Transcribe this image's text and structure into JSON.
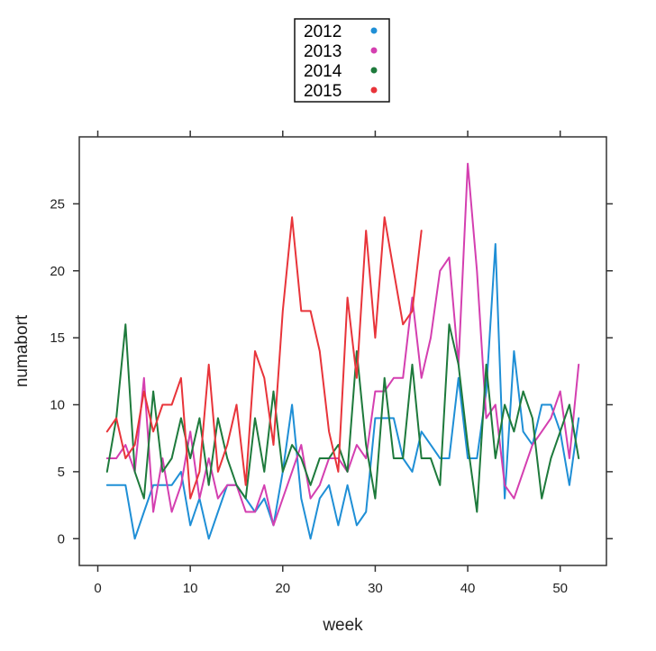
{
  "chart_data": {
    "type": "line",
    "xlabel": "week",
    "ylabel": "numabort",
    "xlim": [
      -2,
      55
    ],
    "ylim": [
      -2,
      30
    ],
    "x_ticks": [
      0,
      10,
      20,
      30,
      40,
      50
    ],
    "y_ticks": [
      0,
      5,
      10,
      15,
      20,
      25
    ],
    "grid": false,
    "legend_position": "top-center",
    "series": [
      {
        "name": "2012",
        "color": "#1f8fd6",
        "x": [
          1,
          2,
          3,
          4,
          5,
          6,
          7,
          8,
          9,
          10,
          11,
          12,
          13,
          14,
          15,
          16,
          17,
          18,
          19,
          20,
          21,
          22,
          23,
          24,
          25,
          26,
          27,
          28,
          29,
          30,
          31,
          32,
          33,
          34,
          35,
          36,
          37,
          38,
          39,
          40,
          41,
          42,
          43,
          44,
          45,
          46,
          47,
          48,
          49,
          50,
          51,
          52
        ],
        "values": [
          4,
          4,
          4,
          0,
          2,
          4,
          4,
          4,
          5,
          1,
          3,
          0,
          2,
          4,
          4,
          3,
          2,
          3,
          1,
          5,
          10,
          3,
          0,
          3,
          4,
          1,
          4,
          1,
          2,
          9,
          9,
          9,
          6,
          5,
          8,
          7,
          6,
          6,
          12,
          6,
          6,
          11,
          22,
          3,
          14,
          8,
          7,
          10,
          10,
          8,
          4,
          9
        ]
      },
      {
        "name": "2013",
        "color": "#d43fb0",
        "x": [
          1,
          2,
          3,
          4,
          5,
          6,
          7,
          8,
          9,
          10,
          11,
          12,
          13,
          14,
          15,
          16,
          17,
          18,
          19,
          20,
          21,
          22,
          23,
          24,
          25,
          26,
          27,
          28,
          29,
          30,
          31,
          32,
          33,
          34,
          35,
          36,
          37,
          38,
          39,
          40,
          41,
          42,
          43,
          44,
          45,
          46,
          47,
          48,
          49,
          50,
          51,
          52
        ],
        "values": [
          6,
          6,
          7,
          5,
          12,
          2,
          6,
          2,
          4,
          8,
          3,
          6,
          3,
          4,
          4,
          2,
          2,
          4,
          1,
          3,
          5,
          7,
          3,
          4,
          6,
          6,
          5,
          7,
          6,
          11,
          11,
          12,
          12,
          18,
          12,
          15,
          20,
          21,
          13,
          28,
          20,
          9,
          10,
          4,
          3,
          5,
          7,
          8,
          9,
          11,
          6,
          13
        ]
      },
      {
        "name": "2014",
        "color": "#1e7a3c",
        "x": [
          1,
          2,
          3,
          4,
          5,
          6,
          7,
          8,
          9,
          10,
          11,
          12,
          13,
          14,
          15,
          16,
          17,
          18,
          19,
          20,
          21,
          22,
          23,
          24,
          25,
          26,
          27,
          28,
          29,
          30,
          31,
          32,
          33,
          34,
          35,
          36,
          37,
          38,
          39,
          40,
          41,
          42,
          43,
          44,
          45,
          46,
          47,
          48,
          49,
          50,
          51,
          52
        ],
        "values": [
          5,
          9,
          16,
          5,
          3,
          11,
          5,
          6,
          9,
          6,
          9,
          4,
          9,
          6,
          4,
          3,
          9,
          5,
          11,
          5,
          7,
          6,
          4,
          6,
          6,
          7,
          5,
          14,
          7,
          3,
          12,
          6,
          6,
          13,
          6,
          6,
          4,
          16,
          13,
          7,
          2,
          13,
          6,
          10,
          8,
          11,
          9,
          3,
          6,
          8,
          10,
          6
        ]
      },
      {
        "name": "2015",
        "color": "#e8343a",
        "x": [
          1,
          2,
          3,
          4,
          5,
          6,
          7,
          8,
          9,
          10,
          11,
          12,
          13,
          14,
          15,
          16,
          17,
          18,
          19,
          20,
          21,
          22,
          23,
          24,
          25,
          26,
          27,
          28,
          29,
          30,
          31,
          32,
          33,
          34,
          35
        ],
        "values": [
          8,
          9,
          6,
          7,
          11,
          8,
          10,
          10,
          12,
          3,
          5,
          13,
          5,
          7,
          10,
          4,
          14,
          12,
          7,
          17,
          24,
          17,
          17,
          14,
          8,
          5,
          18,
          12,
          23,
          15,
          24,
          20,
          16,
          17,
          23
        ]
      }
    ]
  }
}
